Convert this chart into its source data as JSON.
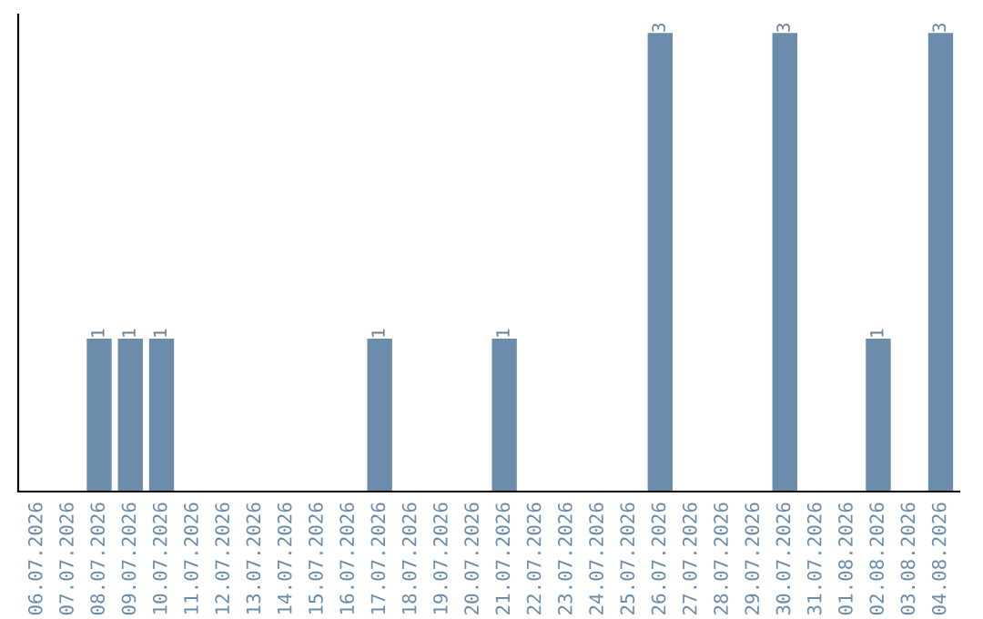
{
  "chart_data": {
    "type": "bar",
    "categories": [
      "06.07.2026",
      "07.07.2026",
      "08.07.2026",
      "09.07.2026",
      "10.07.2026",
      "11.07.2026",
      "12.07.2026",
      "13.07.2026",
      "14.07.2026",
      "15.07.2026",
      "16.07.2026",
      "17.07.2026",
      "18.07.2026",
      "19.07.2026",
      "20.07.2026",
      "21.07.2026",
      "22.07.2026",
      "23.07.2026",
      "24.07.2026",
      "25.07.2026",
      "26.07.2026",
      "27.07.2026",
      "28.07.2026",
      "29.07.2026",
      "30.07.2026",
      "31.07.2026",
      "01.08.2026",
      "02.08.2026",
      "03.08.2026",
      "04.08.2026"
    ],
    "values": [
      0,
      0,
      1,
      1,
      1,
      0,
      0,
      0,
      0,
      0,
      0,
      1,
      0,
      0,
      0,
      1,
      0,
      0,
      0,
      0,
      3,
      0,
      0,
      0,
      3,
      0,
      0,
      1,
      0,
      3
    ],
    "value_labels": [
      null,
      null,
      "1",
      "1",
      "1",
      null,
      null,
      null,
      null,
      null,
      null,
      "1",
      null,
      null,
      null,
      "1",
      null,
      null,
      null,
      null,
      "3",
      null,
      null,
      null,
      "3",
      null,
      null,
      "1",
      null,
      "3"
    ],
    "color": "#6b8caa",
    "grid": false,
    "legend": false
  }
}
